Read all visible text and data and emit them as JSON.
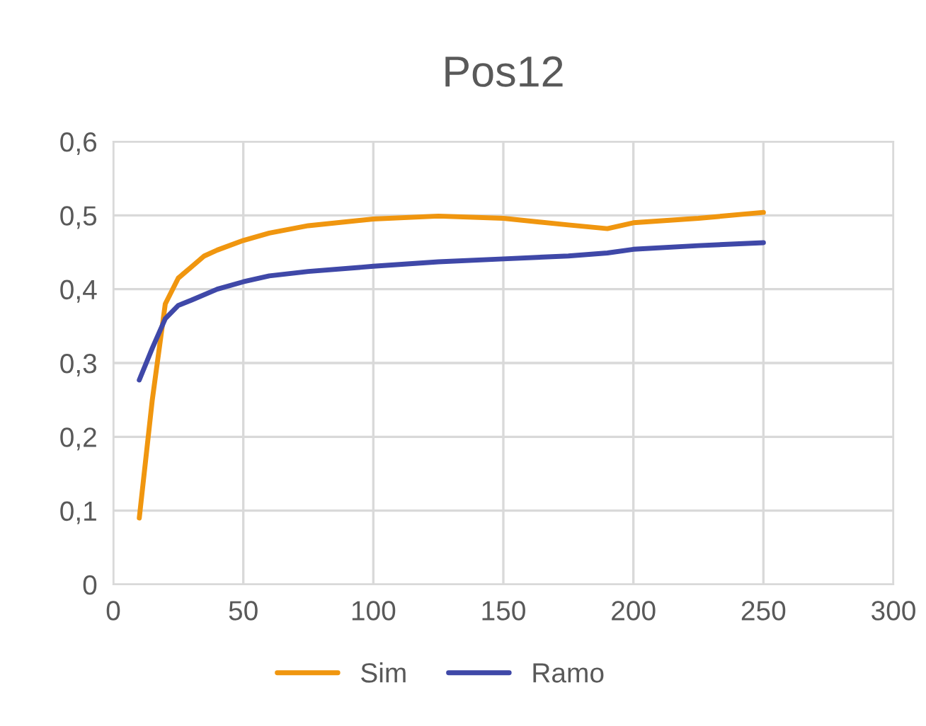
{
  "chart_data": {
    "type": "line",
    "title": "Pos12",
    "series": [
      {
        "name": "Sim",
        "color": "#f0960f",
        "x": [
          10,
          15,
          20,
          25,
          30,
          35,
          40,
          50,
          60,
          75,
          100,
          125,
          150,
          175,
          190,
          200,
          225,
          250
        ],
        "values": [
          0.09,
          0.25,
          0.38,
          0.415,
          0.43,
          0.445,
          0.453,
          0.466,
          0.476,
          0.486,
          0.495,
          0.499,
          0.496,
          0.487,
          0.482,
          0.49,
          0.496,
          0.504
        ]
      },
      {
        "name": "Ramo",
        "color": "#3f48a8",
        "x": [
          10,
          15,
          20,
          25,
          30,
          40,
          50,
          60,
          75,
          100,
          125,
          150,
          175,
          190,
          200,
          225,
          250
        ],
        "values": [
          0.277,
          0.32,
          0.36,
          0.378,
          0.385,
          0.4,
          0.41,
          0.418,
          0.424,
          0.431,
          0.437,
          0.441,
          0.445,
          0.449,
          0.454,
          0.459,
          0.463
        ]
      }
    ],
    "xlim": [
      0,
      300
    ],
    "xticks": [
      0,
      50,
      100,
      150,
      200,
      250,
      300
    ],
    "ylim": [
      0,
      0.6
    ],
    "yticks": [
      0,
      {
        "value": 0.1,
        "label": "0,1"
      },
      {
        "value": 0.2,
        "label": "0,2"
      },
      {
        "value": 0.3,
        "label": "0,3"
      },
      {
        "value": 0.4,
        "label": "0,4"
      },
      {
        "value": 0.5,
        "label": "0,5"
      },
      {
        "value": 0.6,
        "label": "0,6"
      }
    ],
    "grid": true,
    "legend": "bottom",
    "marker": "none",
    "line_style": "solid"
  }
}
